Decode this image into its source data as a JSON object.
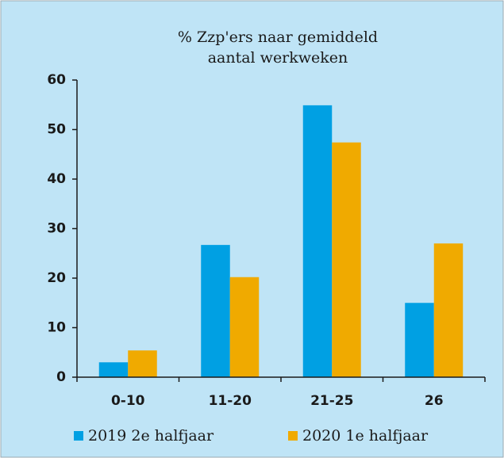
{
  "chart_data": {
    "type": "bar",
    "title": [
      "% Zzp'ers naar gemiddeld",
      "aantal werkweken"
    ],
    "categories": [
      "0-10",
      "11-20",
      "21-25",
      "26"
    ],
    "series": [
      {
        "name": "2019 2e halfjaar",
        "color": "#00a0e3",
        "values": [
          3,
          26.7,
          54.9,
          15
        ]
      },
      {
        "name": "2020 1e halfjaar",
        "color": "#f0aa00",
        "values": [
          5.4,
          20.2,
          47.4,
          27
        ]
      }
    ],
    "ylim": [
      0,
      60
    ],
    "yticks": [
      0,
      10,
      20,
      30,
      40,
      50,
      60
    ],
    "grid": false,
    "legend": "bottom"
  }
}
